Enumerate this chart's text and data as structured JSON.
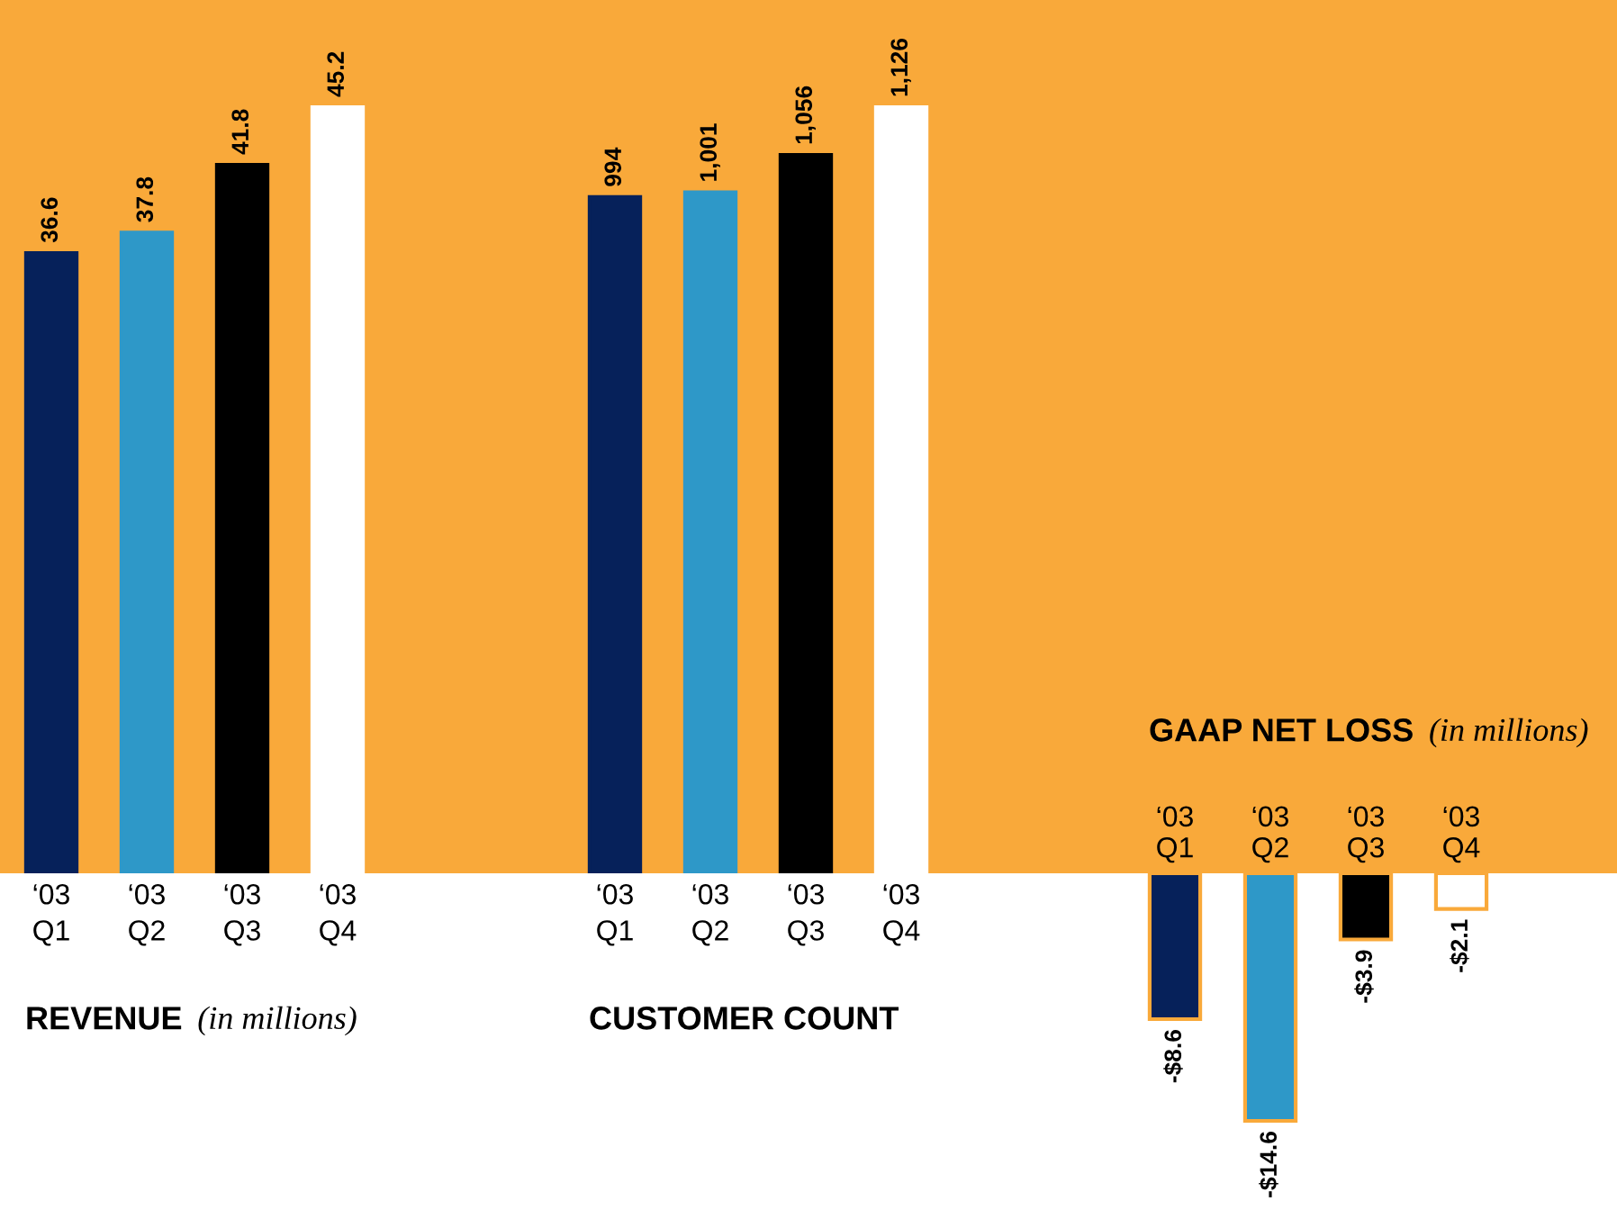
{
  "chart_data": [
    {
      "type": "bar",
      "title": "REVENUE",
      "subtitle": "(in millions)",
      "categories": [
        "‘03\nQ1",
        "‘03\nQ2",
        "‘03\nQ3",
        "‘03\nQ4"
      ],
      "values": [
        36.6,
        37.8,
        41.8,
        45.2
      ],
      "colors": [
        "#06215a",
        "#2e98c8",
        "#000000",
        "#ffffff"
      ],
      "data_labels": true
    },
    {
      "type": "bar",
      "title": "CUSTOMER COUNT",
      "categories": [
        "‘03\nQ1",
        "‘03\nQ2",
        "‘03\nQ3",
        "‘03\nQ4"
      ],
      "values": [
        994,
        1001,
        1056,
        1126
      ],
      "value_labels": [
        "994",
        "1,001",
        "1,056",
        "1,126"
      ],
      "colors": [
        "#06215a",
        "#2e98c8",
        "#000000",
        "#ffffff"
      ]
    },
    {
      "type": "bar",
      "title": "GAAP NET LOSS",
      "subtitle": "(in millions)",
      "categories": [
        "‘03\nQ1",
        "‘03\nQ2",
        "‘03\nQ3",
        "‘03\nQ4"
      ],
      "values": [
        -8.6,
        -14.6,
        -3.9,
        -2.1
      ],
      "value_labels": [
        "-$8.6",
        "-$14.6",
        "-$3.9",
        "-$2.1"
      ],
      "colors": [
        "#06215a",
        "#2e98c8",
        "#000000",
        "#ffffff"
      ]
    }
  ]
}
